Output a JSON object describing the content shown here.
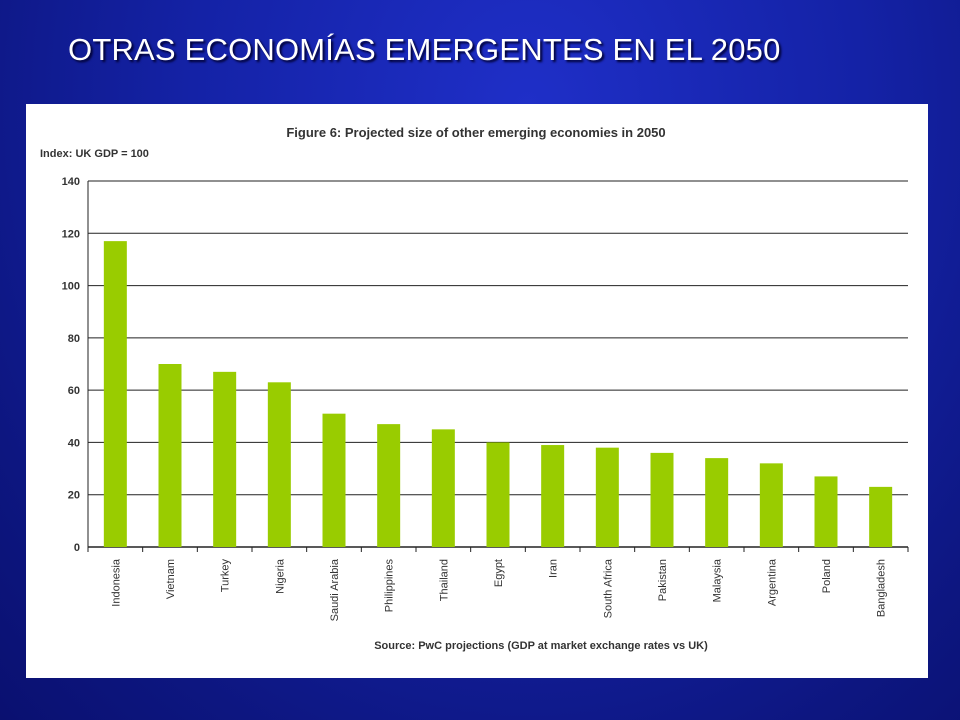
{
  "slide": {
    "title": "OTRAS ECONOMÍAS EMERGENTES EN EL 2050"
  },
  "colors": {
    "bar": "#99cc00",
    "gridline": "#222222",
    "slide_background": "#1422a6",
    "title_text": "#ffffff"
  },
  "chart_data": {
    "type": "bar",
    "title": "Figure 6: Projected size of other emerging economies in 2050",
    "ylabel": "Index: UK GDP = 100",
    "xlabel": "",
    "source": "Source: PwC projections (GDP at market exchange rates vs UK)",
    "ylim": [
      0,
      140
    ],
    "yticks": [
      0,
      20,
      40,
      60,
      80,
      100,
      120,
      140
    ],
    "grid": true,
    "categories": [
      "Indonesia",
      "Vietnam",
      "Turkey",
      "Nigeria",
      "Saudi Arabia",
      "Philippines",
      "Thailand",
      "Egypt",
      "Iran",
      "South Africa",
      "Pakistan",
      "Malaysia",
      "Argentina",
      "Poland",
      "Bangladesh"
    ],
    "values": [
      117,
      70,
      67,
      63,
      51,
      47,
      45,
      40,
      39,
      38,
      36,
      34,
      32,
      27,
      23
    ]
  }
}
